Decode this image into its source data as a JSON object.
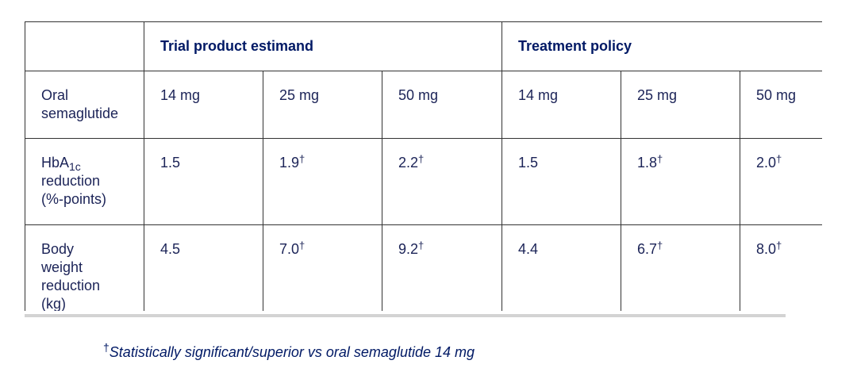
{
  "table": {
    "header": {
      "groups": [
        {
          "label": "Trial product estimand"
        },
        {
          "label": "Treatment policy"
        }
      ]
    },
    "rows": [
      {
        "label": {
          "text": "Oral semaglutide"
        },
        "cells": [
          {
            "text": "14 mg"
          },
          {
            "text": "25 mg"
          },
          {
            "text": "50 mg"
          },
          {
            "text": "14 mg"
          },
          {
            "text": "25 mg"
          },
          {
            "text": "50 mg"
          }
        ]
      },
      {
        "label": {
          "text": "HbA",
          "sub": "1c",
          "rest": "reduction (%-points)"
        },
        "cells": [
          {
            "text": "1.5"
          },
          {
            "text": "1.9",
            "sup": "†"
          },
          {
            "text": "2.2",
            "sup": "†"
          },
          {
            "text": "1.5"
          },
          {
            "text": "1.8",
            "sup": "†"
          },
          {
            "text": "2.0",
            "sup": "†"
          }
        ]
      },
      {
        "label": {
          "text": "Body weight reduction (kg)"
        },
        "cells": [
          {
            "text": "4.5"
          },
          {
            "text": "7.0",
            "sup": "†"
          },
          {
            "text": "9.2",
            "sup": "†"
          },
          {
            "text": "4.4"
          },
          {
            "text": "6.7",
            "sup": "†"
          },
          {
            "text": "8.0",
            "sup": "†"
          }
        ]
      }
    ]
  },
  "footnote": {
    "mark": "†",
    "text": "Statistically significant/superior vs oral semaglutide 14 mg"
  }
}
